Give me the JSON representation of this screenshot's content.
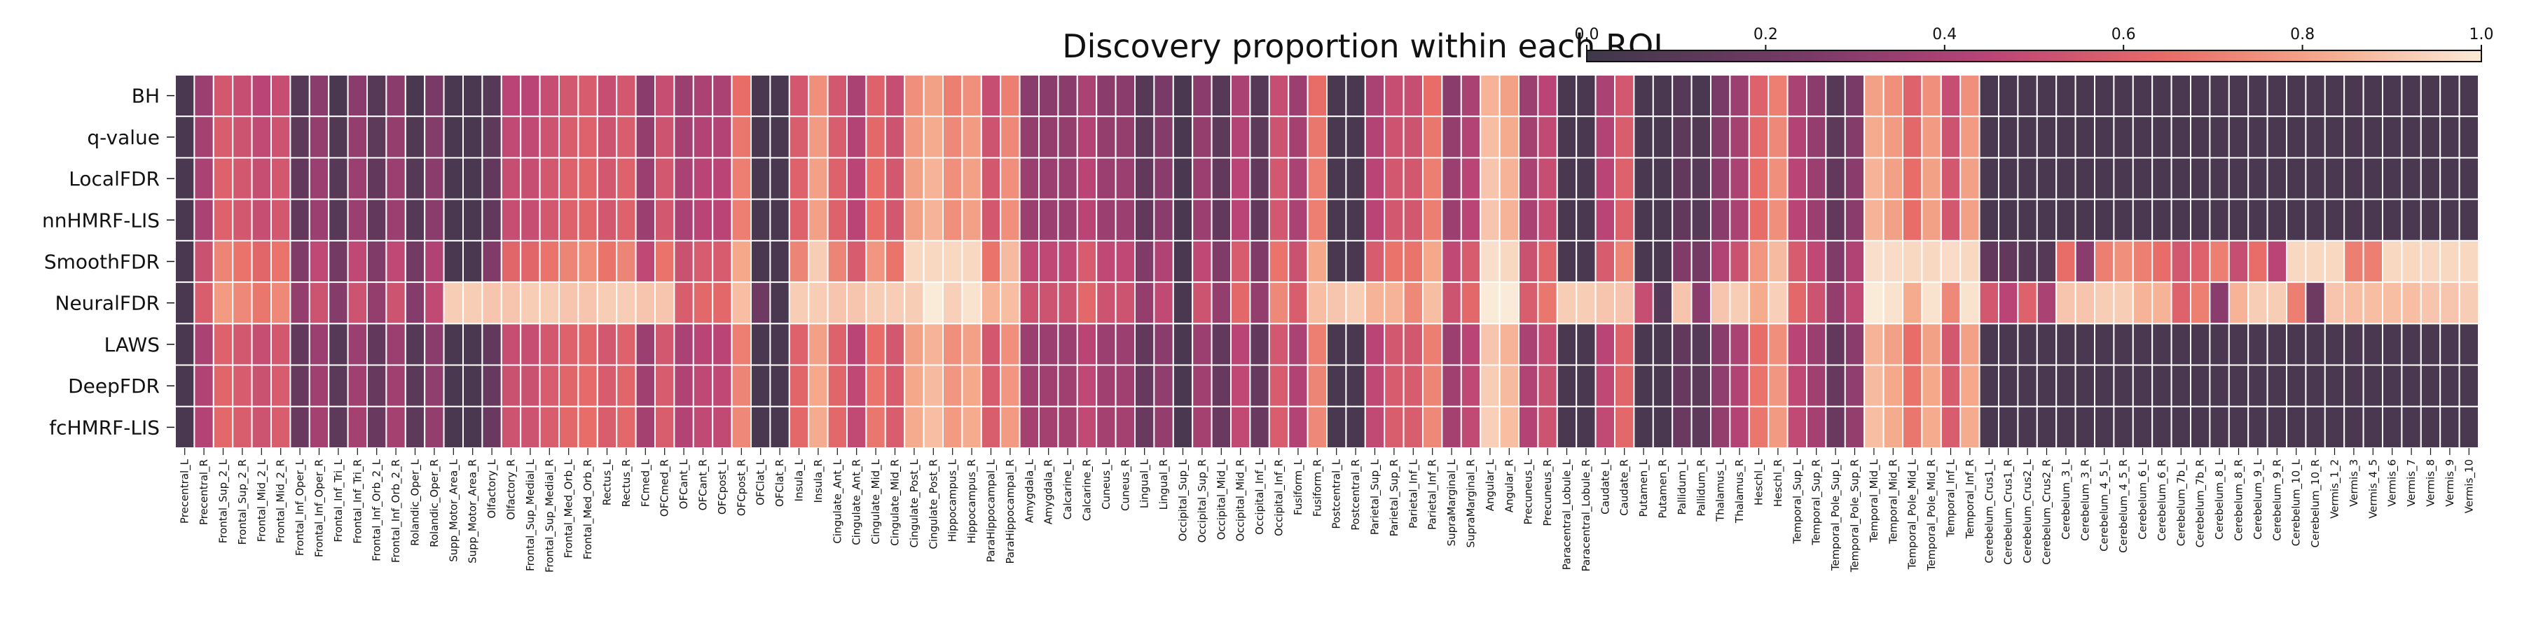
{
  "chart_data": {
    "type": "heatmap",
    "title": "Discovery proportion within each ROI",
    "colorbar": {
      "ticks": [
        "0.0",
        "0.2",
        "0.4",
        "0.6",
        "0.8",
        "1.0"
      ],
      "range": [
        0,
        1
      ],
      "placement": "top-right"
    },
    "rows": [
      "BH",
      "q-value",
      "LocalFDR",
      "nnHMRF-LIS",
      "SmoothFDR",
      "NeuralFDR",
      "LAWS",
      "DeepFDR",
      "fcHMRF-LIS"
    ],
    "columns": [
      "Precentral_L",
      "Precentral_R",
      "Frontal_Sup_2_L",
      "Frontal_Sup_2_R",
      "Frontal_Mid_2_L",
      "Frontal_Mid_2_R",
      "Frontal_Inf_Oper_L",
      "Frontal_Inf_Oper_R",
      "Frontal_Inf_Tri_L",
      "Frontal_Inf_Tri_R",
      "Frontal_Inf_Orb_2_L",
      "Frontal_Inf_Orb_2_R",
      "Rolandic_Oper_L",
      "Rolandic_Oper_R",
      "Supp_Motor_Area_L",
      "Supp_Motor_Area_R",
      "Olfactory_L",
      "Olfactory_R",
      "Frontal_Sup_Medial_L",
      "Frontal_Sup_Medial_R",
      "Frontal_Med_Orb_L",
      "Frontal_Med_Orb_R",
      "Rectus_L",
      "Rectus_R",
      "FCmed_L",
      "OFCmed_R",
      "OFCant_L",
      "OFCant_R",
      "OFCpost_L",
      "OFCpost_R",
      "OFClat_L",
      "OFClat_R",
      "Insula_L",
      "Insula_R",
      "Cingulate_Ant_L",
      "Cingulate_Ant_R",
      "Cingulate_Mid_L",
      "Cingulate_Mid_R",
      "Cingulate_Post_L",
      "Cingulate_Post_R",
      "Hippocampus_L",
      "Hippocampus_R",
      "ParaHippocampal_L",
      "ParaHippocampal_R",
      "Amygdala_L",
      "Amygdala_R",
      "Calcarine_L",
      "Calcarine_R",
      "Cuneus_L",
      "Cuneus_R",
      "Lingual_L",
      "Lingual_R",
      "Occipital_Sup_L",
      "Occipital_Sup_R",
      "Occipital_Mid_L",
      "Occipital_Mid_R",
      "Occipital_Inf_L",
      "Occipital_Inf_R",
      "Fusiform_L",
      "Fusiform_R",
      "Postcentral_L",
      "Postcentral_R",
      "Parietal_Sup_L",
      "Parietal_Sup_R",
      "Parietal_Inf_L",
      "Parietal_Inf_R",
      "SupraMarginal_L",
      "SupraMarginal_R",
      "Angular_L",
      "Angular_R",
      "Precuneus_L",
      "Precuneus_R",
      "Paracentral_Lobule_L",
      "Paracentral_Lobule_R",
      "Caudate_L",
      "Caudate_R",
      "Putamen_L",
      "Putamen_R",
      "Pallidum_L",
      "Pallidum_R",
      "Thalamus_L",
      "Thalamus_R",
      "Heschl_L",
      "Heschl_R",
      "Temporal_Sup_L",
      "Temporal_Sup_R",
      "Temporal_Pole_Sup_L",
      "Temporal_Pole_Sup_R",
      "Temporal_Mid_L",
      "Temporal_Mid_R",
      "Temporal_Pole_Mid_L",
      "Temporal_Pole_Mid_R",
      "Temporal_Inf_L",
      "Temporal_Inf_R",
      "Cerebelum_Crus1_L",
      "Cerebelum_Crus1_R",
      "Cerebelum_Crus2_L",
      "Cerebelum_Crus2_R",
      "Cerebelum_3_L",
      "Cerebelum_3_R",
      "Cerebelum_4_5_L",
      "Cerebelum_4_5_R",
      "Cerebelum_6_L",
      "Cerebelum_6_R",
      "Cerebelum_7b_L",
      "Cerebelum_7b_R",
      "Cerebelum_8_L",
      "Cerebelum_8_R",
      "Cerebelum_9_L",
      "Cerebelum_9_R",
      "Cerebelum_10_L",
      "Cerebelum_10_R",
      "Vermis_1_2",
      "Vermis_3",
      "Vermis_4_5",
      "Vermis_6",
      "Vermis_7",
      "Vermis_8",
      "Vermis_9",
      "Vermis_10"
    ],
    "base_profile": [
      0.05,
      0.4,
      0.6,
      0.55,
      0.5,
      0.55,
      0.15,
      0.35,
      0.1,
      0.35,
      0.15,
      0.35,
      0.1,
      0.3,
      0.05,
      0.05,
      0.15,
      0.5,
      0.5,
      0.55,
      0.6,
      0.62,
      0.55,
      0.6,
      0.35,
      0.55,
      0.4,
      0.45,
      0.45,
      0.7,
      0.05,
      0.05,
      0.6,
      0.8,
      0.6,
      0.45,
      0.65,
      0.55,
      0.8,
      0.85,
      0.75,
      0.8,
      0.55,
      0.75,
      0.35,
      0.35,
      0.35,
      0.45,
      0.35,
      0.35,
      0.15,
      0.3,
      0.05,
      0.35,
      0.15,
      0.45,
      0.15,
      0.55,
      0.4,
      0.7,
      0.05,
      0.05,
      0.45,
      0.55,
      0.55,
      0.7,
      0.35,
      0.45,
      0.9,
      0.85,
      0.4,
      0.5,
      0.05,
      0.05,
      0.45,
      0.6,
      0.05,
      0.05,
      0.15,
      0.1,
      0.3,
      0.4,
      0.65,
      0.75,
      0.45,
      0.35,
      0.15,
      0.3,
      0.85,
      0.8,
      0.65,
      0.8,
      0.55,
      0.8,
      0.05,
      0.05,
      0.05,
      0.05,
      0.05,
      0.05,
      0.05,
      0.05,
      0.05,
      0.05,
      0.05,
      0.05,
      0.05,
      0.05,
      0.05,
      0.05,
      0.05,
      0.05,
      0.05,
      0.05,
      0.05,
      0.05,
      0.05,
      0.05,
      0.05,
      0.05
    ],
    "row_adjust": {
      "BH": -0.05,
      "q-value": -0.02,
      "LocalFDR": 0.0,
      "nnHMRF-LIS": 0.0,
      "SmoothFDR": 0.12,
      "NeuralFDR": 0.18,
      "LAWS": 0.0,
      "DeepFDR": 0.02,
      "fcHMRF-LIS": 0.03
    },
    "overrides": {
      "SmoothFDR": {
        "14": 0.05,
        "15": 0.05,
        "30": 0.05,
        "31": 0.05,
        "38": 0.95,
        "39": 0.95,
        "40": 0.95,
        "41": 0.95,
        "68": 0.97,
        "69": 0.95,
        "88": 0.97,
        "89": 0.96,
        "90": 0.95,
        "91": 0.95,
        "92": 0.96,
        "93": 0.95,
        "94": 0.15,
        "95": 0.15,
        "96": 0.1,
        "97": 0.1,
        "98": 0.65,
        "99": 0.3,
        "100": 0.7,
        "101": 0.75,
        "102": 0.7,
        "103": 0.65,
        "104": 0.55,
        "105": 0.6,
        "106": 0.7,
        "107": 0.5,
        "108": 0.65,
        "109": 0.45,
        "110": 0.95,
        "111": 0.95,
        "112": 0.95,
        "113": 0.7,
        "114": 0.7,
        "115": 0.95,
        "116": 0.95,
        "117": 0.95,
        "118": 0.95,
        "119": 0.95
      },
      "NeuralFDR": {
        "14": 0.92,
        "15": 0.92,
        "16": 0.9,
        "17": 0.9,
        "18": 0.92,
        "19": 0.92,
        "20": 0.9,
        "21": 0.9,
        "22": 0.92,
        "23": 0.92,
        "24": 0.9,
        "25": 0.9,
        "30": 0.2,
        "31": 0.05,
        "32": 0.92,
        "33": 0.92,
        "34": 0.9,
        "35": 0.9,
        "36": 0.92,
        "37": 0.92,
        "38": 0.92,
        "42": 0.85,
        "43": 0.88,
        "60": 0.9,
        "61": 0.92,
        "62": 0.85,
        "63": 0.85,
        "72": 0.92,
        "73": 0.92,
        "74": 0.9,
        "75": 0.9,
        "76": 0.5,
        "77": 0.1,
        "78": 0.9,
        "79": 0.3,
        "80": 0.9,
        "81": 0.92,
        "94": 0.55,
        "95": 0.45,
        "96": 0.6,
        "97": 0.4,
        "98": 0.9,
        "99": 0.9,
        "100": 0.92,
        "101": 0.92,
        "102": 0.85,
        "103": 0.85,
        "104": 0.6,
        "105": 0.7,
        "106": 0.3,
        "107": 0.85,
        "108": 0.92,
        "109": 0.92,
        "110": 0.7,
        "111": 0.2,
        "112": 0.9,
        "113": 0.88,
        "114": 0.88,
        "115": 0.88,
        "116": 0.88,
        "117": 0.9,
        "118": 0.9,
        "119": 0.92
      }
    }
  }
}
